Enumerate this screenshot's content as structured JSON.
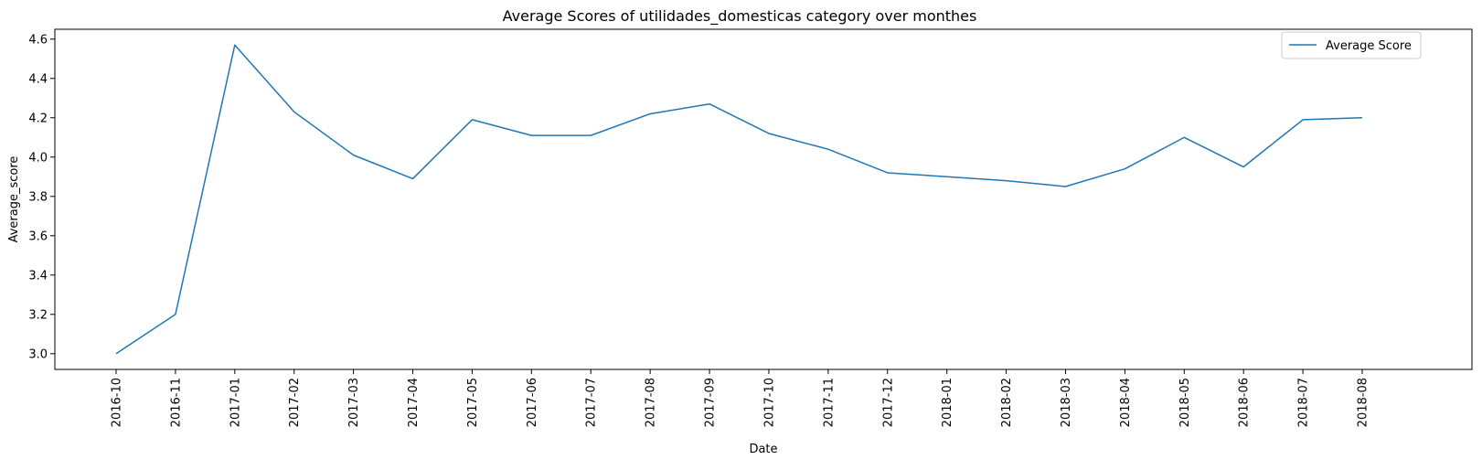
{
  "chart_data": {
    "type": "line",
    "title": "Average Scores of utilidades_domesticas category over monthes",
    "xlabel": "Date",
    "ylabel": "Average_score",
    "categories": [
      "2016-10",
      "2016-11",
      "2017-01",
      "2017-02",
      "2017-03",
      "2017-04",
      "2017-05",
      "2017-06",
      "2017-07",
      "2017-08",
      "2017-09",
      "2017-10",
      "2017-11",
      "2017-12",
      "2018-01",
      "2018-02",
      "2018-03",
      "2018-04",
      "2018-05",
      "2018-06",
      "2018-07",
      "2018-08"
    ],
    "series": [
      {
        "name": "Average Score",
        "values": [
          3.0,
          3.2,
          4.57,
          4.23,
          4.01,
          3.89,
          4.19,
          4.11,
          4.11,
          4.22,
          4.27,
          4.12,
          4.04,
          3.92,
          3.9,
          3.88,
          3.85,
          3.94,
          4.1,
          3.95,
          4.19,
          4.2
        ],
        "color": "#1f77b4"
      }
    ],
    "ylim": [
      2.92,
      4.65
    ],
    "yticks": [
      "3.0",
      "3.2",
      "3.4",
      "3.6",
      "3.8",
      "4.0",
      "4.2",
      "4.4",
      "4.6"
    ],
    "grid": false,
    "legend": "top-right"
  }
}
